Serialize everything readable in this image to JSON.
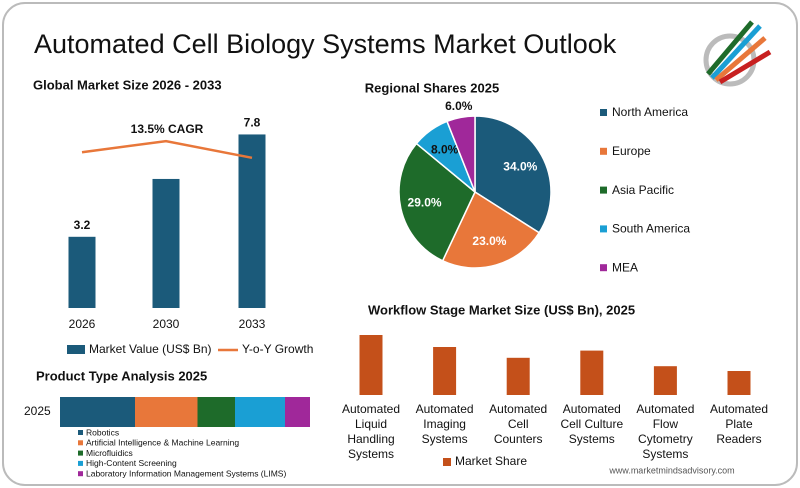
{
  "title": "Automated Cell Biology Systems Market Outlook",
  "footer": "www.marketmindsadvisory.com",
  "chart_data": [
    {
      "type": "combo",
      "title": "Global Market Size 2026 - 2033",
      "categories": [
        "2026",
        "2030",
        "2033"
      ],
      "series": [
        {
          "name": "Market Value (US$ Bn)",
          "color": "#1b5a7a",
          "values": [
            3.2,
            5.8,
            7.8
          ],
          "value_labels": [
            "3.2",
            null,
            "7.8"
          ]
        },
        {
          "name": "Y-o-Y Growth",
          "color": "#e8773a",
          "values": [
            14.0,
            15.0,
            13.5
          ],
          "axis": "y2"
        }
      ],
      "annotation": "13.5% CAGR",
      "ylim": [
        0,
        8
      ],
      "y2lim": [
        0,
        16
      ]
    },
    {
      "type": "pie",
      "title": "Regional Shares 2025",
      "categories": [
        "North America",
        "Europe",
        "Asia Pacific",
        "South America",
        "MEA"
      ],
      "values": [
        34,
        23,
        29,
        8,
        6
      ],
      "value_labels": [
        "34.0%",
        "23.0%",
        "29.0%",
        "8.0%",
        "6.0%"
      ],
      "colors": [
        "#1b5a7a",
        "#e8773a",
        "#1e6b2a",
        "#1a9fd4",
        "#a0289a"
      ]
    },
    {
      "type": "barh",
      "title": "Product Type Analysis 2025",
      "stacked": true,
      "categories": [
        "2025"
      ],
      "series": [
        {
          "name": "Robotics",
          "color": "#1b5a7a",
          "values": [
            30
          ]
        },
        {
          "name": "Artificial Intelligence & Machine Learning",
          "color": "#e8773a",
          "values": [
            25
          ]
        },
        {
          "name": "Microfluidics",
          "color": "#1e6b2a",
          "values": [
            15
          ]
        },
        {
          "name": "High-Content Screening",
          "color": "#1a9fd4",
          "values": [
            20
          ]
        },
        {
          "name": "Laboratory Information Management Systems (LIMS)",
          "color": "#a0289a",
          "values": [
            10
          ]
        }
      ],
      "xlim": [
        0,
        100
      ]
    },
    {
      "type": "bar",
      "title": "Workflow Stage Market Size (US$ Bn), 2025",
      "categories": [
        "Automated Liquid Handling Systems",
        "Automated Imaging Systems",
        "Automated Cell Counters",
        "Automated Cell Culture Systems",
        "Automated Flow Cytometry Systems",
        "Automated Plate Readers"
      ],
      "series": [
        {
          "name": "Market Share",
          "color": "#c4501a",
          "values": [
            2.5,
            2.0,
            1.55,
            1.85,
            1.2,
            1.0
          ]
        }
      ],
      "ylim": [
        0,
        2.5
      ]
    }
  ]
}
